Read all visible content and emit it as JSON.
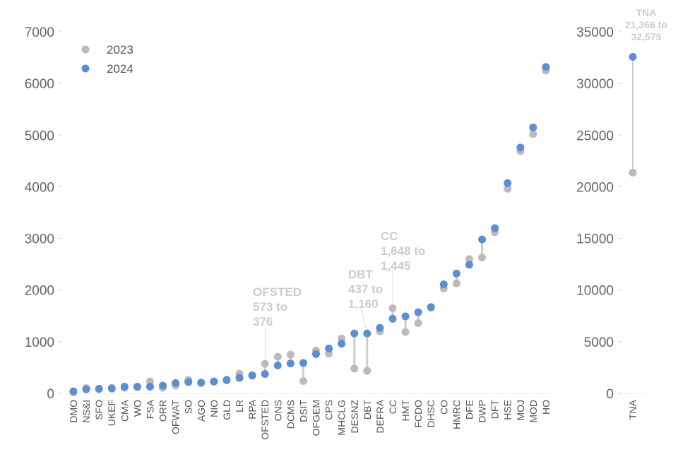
{
  "chart_data": {
    "type": "scatter",
    "subtype": "dumbbell",
    "title": "",
    "xlabel": "",
    "ylabel": "",
    "grid": false,
    "legend_position": "top-left",
    "legend": [
      {
        "name": "2023",
        "color": "#bbbbbb"
      },
      {
        "name": "2024",
        "color": "#5b8fcf"
      }
    ],
    "colors": {
      "series_2023": "#bbbbbb",
      "series_2024": "#5b8fcf",
      "connector": "#cccccc",
      "annotation": "#cccccc"
    },
    "main_panel": {
      "ylim": [
        0,
        7000
      ],
      "yticks": [
        0,
        1000,
        2000,
        3000,
        4000,
        5000,
        6000,
        7000
      ],
      "ytick_labels": [
        "0",
        "1000",
        "2000",
        "3000",
        "4000",
        "5000",
        "6000",
        "7000"
      ],
      "categories": [
        "DMO",
        "NS&I",
        "SFO",
        "UKEF",
        "CMA",
        "WO",
        "FSA",
        "ORR",
        "OFWAT",
        "SO",
        "AGO",
        "NIO",
        "GLD",
        "LR",
        "RPA",
        "OFSTED",
        "ONS",
        "DCMS",
        "DSIT",
        "OFGEM",
        "CPS",
        "MHCLG",
        "DESNZ",
        "DBT",
        "DEFRA",
        "CC",
        "HMT",
        "FCDO",
        "DHSC",
        "CO",
        "HMRC",
        "DFE",
        "DWP",
        "DFT",
        "HSE",
        "MOJ",
        "MOD",
        "HO"
      ],
      "series": [
        {
          "name": "2023",
          "values": [
            20,
            100,
            80,
            90,
            110,
            120,
            230,
            110,
            150,
            260,
            200,
            230,
            250,
            380,
            340,
            573,
            710,
            750,
            240,
            830,
            770,
            1060,
            480,
            437,
            1200,
            1648,
            1190,
            1360,
            1660,
            2030,
            2130,
            2600,
            2630,
            3120,
            3960,
            4690,
            5020,
            6250
          ]
        },
        {
          "name": "2024",
          "values": [
            40,
            80,
            90,
            100,
            130,
            130,
            130,
            150,
            200,
            220,
            210,
            230,
            260,
            300,
            350,
            376,
            540,
            580,
            590,
            760,
            870,
            960,
            1160,
            1160,
            1270,
            1445,
            1490,
            1570,
            1670,
            2110,
            2320,
            2490,
            2980,
            3200,
            4070,
            4760,
            5150,
            6320
          ]
        }
      ]
    },
    "side_panel": {
      "ylim": [
        0,
        35000
      ],
      "yticks": [
        0,
        5000,
        10000,
        15000,
        20000,
        25000,
        30000,
        35000
      ],
      "ytick_labels": [
        "0",
        "5000",
        "10000",
        "15000",
        "20000",
        "25000",
        "30000",
        "35000"
      ],
      "categories": [
        "TNA"
      ],
      "series": [
        {
          "name": "2023",
          "values": [
            21366
          ]
        },
        {
          "name": "2024",
          "values": [
            32575
          ]
        }
      ]
    },
    "annotations": [
      {
        "category": "OFSTED",
        "lines": [
          "OFSTED",
          "573 to",
          "376"
        ]
      },
      {
        "category": "DBT",
        "lines": [
          "DBT",
          "437 to",
          "1,160"
        ]
      },
      {
        "category": "CC",
        "lines": [
          "CC",
          "1,648 to",
          "1,445"
        ]
      },
      {
        "category": "TNA",
        "lines": [
          "TNA",
          "21,366 to",
          "32,575"
        ]
      }
    ]
  }
}
